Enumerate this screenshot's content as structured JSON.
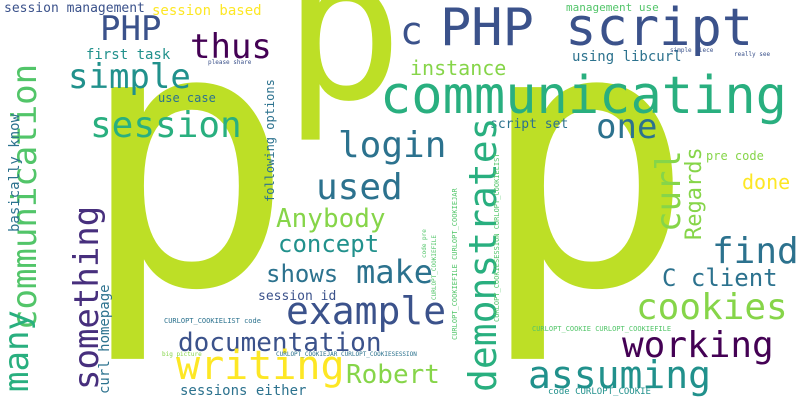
{
  "words": {
    "p_big_left": "p",
    "p_big_right": "p",
    "p_top": "p",
    "communicating": "communicating",
    "php_script": "PHP script",
    "php": "PHP",
    "c": "c",
    "thus": "thus",
    "simple": "simple",
    "session": "session",
    "login": "login",
    "one": "one",
    "used": "used",
    "curl": "curl",
    "find": "find",
    "done": "done",
    "instance": "instance",
    "using_libcurl": "using libcurl",
    "anybody": "Anybody",
    "concept": "concept",
    "make": "make",
    "shows": "shows",
    "example": "example",
    "cookies": "cookies",
    "working": "working",
    "c_client": "C client",
    "documentation": "documentation",
    "writing": "writing",
    "robert": "Robert",
    "assuming": "assuming",
    "sessions_either": "sessions either",
    "session_id": "session id",
    "session_management": "session management",
    "session_based": "session based",
    "management_use": "management use",
    "first_task": "first task",
    "use_case": "use case",
    "script_set": "script set",
    "pre_code": "pre code",
    "please_share": "please share",
    "simple_piece": "simple piece",
    "really_see": "really see",
    "big_picture": "big picture",
    "curlopt_cookielist_code": "CURLOPT_COOKIELIST code",
    "curlopt_cookiejar_sess": "CURLOPT_COOKIEJAR CURLOPT_COOKIESESSION",
    "curlopt_cookie_file": "CURLOPT_COOKIE CURLOPT_COOKIEFILE",
    "code_curlopt_cookie": "code CURLOPT_COOKIE",
    "communication": "communication",
    "many": "many",
    "something": "something",
    "basically_know": "basically know",
    "curl_homepage": "curl homepage",
    "following_options": "following options",
    "demonstrates": "demonstrates",
    "regards": "Regards",
    "cookiefile_jar": "CURLOPT_COOKIEFILE CURLOPT_COOKIEJAR",
    "cookiesession_list": "CURLOPT_COOKIESESSION CURLOPT_COOKIELIST",
    "code_pre": "code pre",
    "curlopt_cookiefile": "CURLOPT_COOKIEFILE"
  },
  "colors": {
    "lime": "#bddf26",
    "green": "#29af7f",
    "green_light": "#52c569",
    "teal": "#21918c",
    "blue": "#2c728e",
    "indigo": "#3b528b",
    "purple": "#472f7d",
    "dark_purple": "#440154",
    "yellow": "#fde725",
    "chartreuse": "#86d549",
    "sea": "#35b779"
  }
}
